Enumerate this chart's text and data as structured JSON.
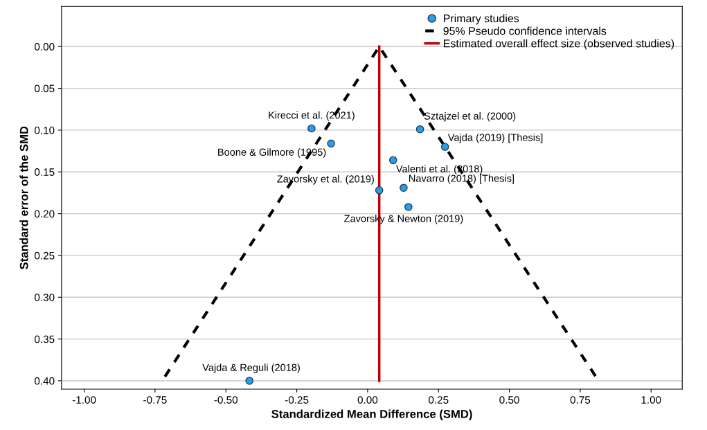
{
  "chart_data": {
    "type": "scatter",
    "xlabel": "Standardized Mean Difference (SMD)",
    "ylabel": "Standard error of the SMD",
    "xlim": [
      -1.08,
      1.11
    ],
    "ylim": [
      0.41,
      -0.048
    ],
    "xticks": [
      {
        "value": -1,
        "label": "-1.00"
      },
      {
        "value": -0.75,
        "label": "-0.75"
      },
      {
        "value": -0.5,
        "label": "-0.50"
      },
      {
        "value": -0.25,
        "label": "-0.25"
      },
      {
        "value": 0,
        "label": "0.00"
      },
      {
        "value": 0.25,
        "label": "0.25"
      },
      {
        "value": 0.5,
        "label": "0.50"
      },
      {
        "value": 0.75,
        "label": "0.75"
      },
      {
        "value": 1,
        "label": "1.00"
      }
    ],
    "yticks": [
      {
        "value": 0,
        "label": "0.00"
      },
      {
        "value": 0.05,
        "label": "0.05"
      },
      {
        "value": 0.1,
        "label": "0.10"
      },
      {
        "value": 0.15,
        "label": "0.15"
      },
      {
        "value": 0.2,
        "label": "0.20"
      },
      {
        "value": 0.25,
        "label": "0.25"
      },
      {
        "value": 0.3,
        "label": "0.30"
      },
      {
        "value": 0.35,
        "label": "0.35"
      },
      {
        "value": 0.4,
        "label": "0.40"
      }
    ],
    "grid": "y",
    "legend": "top right",
    "marker": "circle",
    "series": [
      {
        "name": "Primary studies",
        "color": "#2d9be6",
        "x": [
          -0.198,
          0.185,
          0.273,
          -0.129,
          0.09,
          0.041,
          0.127,
          0.144,
          -0.417
        ],
        "values": [
          0.098,
          0.099,
          0.12,
          0.116,
          0.136,
          0.172,
          0.169,
          0.192,
          0.4
        ]
      },
      {
        "name": "95% Pseudo confidence intervals",
        "type": "line",
        "line_style": "dashed",
        "marker": "none",
        "color": "#000000",
        "x": [
          -0.715,
          0.041,
          0.805
        ],
        "values": [
          0.395,
          0,
          0.395
        ]
      },
      {
        "name": "Estimated overall effect size (observed studies)",
        "type": "line",
        "line_style": "solid",
        "marker": "none",
        "color": "#c00000",
        "x": [
          0.041,
          0.041
        ],
        "values": [
          0,
          0.4
        ]
      }
    ],
    "annotations": [
      {
        "text": "Kirecci et al. (2021)",
        "x": -0.198,
        "y": 0.098
      },
      {
        "text": "Sztajzel et al. (2000)",
        "x": 0.185,
        "y": 0.099
      },
      {
        "text": "Vajda (2019) [Thesis]",
        "x": 0.273,
        "y": 0.12
      },
      {
        "text": "Boone & Gilmore (1995)",
        "x": -0.129,
        "y": 0.116
      },
      {
        "text": "Valenti et al. (2018)",
        "x": 0.09,
        "y": 0.136
      },
      {
        "text": "Zavorsky et al. (2019)",
        "x": 0.041,
        "y": 0.172
      },
      {
        "text": "Navarro (2018) [Thesis]",
        "x": 0.127,
        "y": 0.169
      },
      {
        "text": "Zavorsky & Newton (2019)",
        "x": 0.144,
        "y": 0.192
      },
      {
        "text": "Vajda & Reguli (2018)",
        "x": -0.417,
        "y": 0.4
      }
    ]
  }
}
